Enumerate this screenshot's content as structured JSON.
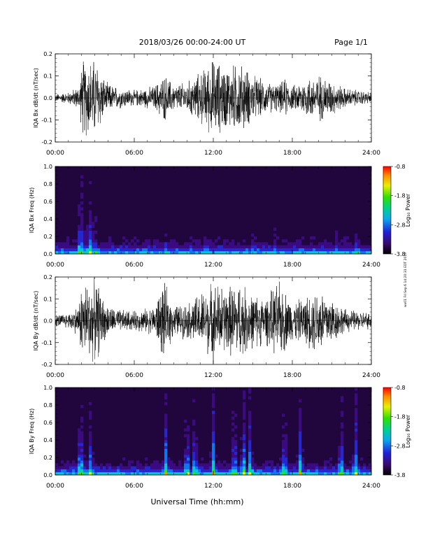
{
  "header": {
    "title": "2018/03/26  00:00-24:00 UT",
    "page": "Page 1/1"
  },
  "footer": {
    "xlabel": "Universal Time (hh:mm)",
    "stamp": "wx01 Fri Sep 6 14:20:31 EDT 2019"
  },
  "chart_data": [
    {
      "type": "line",
      "ylabel": "IQA Bx dB/dt (nT/sec)",
      "xlim": [
        0,
        24
      ],
      "ylim": [
        -0.2,
        0.2
      ],
      "xticks": [
        "00:00",
        "06:00",
        "12:00",
        "18:00",
        "24:00"
      ],
      "yticks": [
        "-0.2",
        "-0.1",
        "0.0",
        "0.1",
        "0.2"
      ],
      "series": [
        {
          "color": "#000000",
          "envelope_x": [
            0,
            1,
            1.8,
            2.1,
            3.2,
            3.8,
            4.5,
            6,
            7.5,
            8.3,
            9,
            10,
            11,
            12,
            13,
            14,
            15,
            16,
            17,
            17.5,
            18,
            19,
            20,
            21,
            22,
            23,
            24
          ],
          "envelope_amplitude": [
            0.02,
            0.03,
            0.06,
            0.2,
            0.2,
            0.08,
            0.06,
            0.04,
            0.06,
            0.12,
            0.07,
            0.08,
            0.13,
            0.2,
            0.16,
            0.18,
            0.12,
            0.08,
            0.07,
            0.1,
            0.06,
            0.1,
            0.12,
            0.09,
            0.05,
            0.04,
            0.03
          ]
        }
      ]
    },
    {
      "type": "heatmap",
      "ylabel": "IQA Bx Freq (Hz)",
      "xlim": [
        0,
        24
      ],
      "ylim": [
        0.0,
        1.0
      ],
      "xticks": [
        "00:00",
        "06:00",
        "12:00",
        "18:00",
        "24:00"
      ],
      "yticks": [
        "0.0",
        "0.2",
        "0.4",
        "0.6",
        "0.8",
        "1.0"
      ],
      "colorbar": {
        "label": "Log₁₀ Power",
        "range": [
          -3.8,
          -0.8
        ],
        "ticks": [
          "-0.8",
          "-1.8",
          "-2.8",
          "-3.8"
        ]
      },
      "bursts": [
        [
          1.9,
          0.9
        ],
        [
          2.05,
          0.75
        ],
        [
          2.6,
          0.85
        ],
        [
          3.0,
          0.5
        ],
        [
          8.4,
          0.25
        ],
        [
          11.5,
          0.15
        ],
        [
          15.0,
          0.15
        ],
        [
          16.7,
          0.2
        ],
        [
          21.3,
          0.25
        ],
        [
          22.9,
          0.35
        ]
      ]
    },
    {
      "type": "line",
      "ylabel": "IQA By dB/dt (nT/sec)",
      "xlim": [
        0,
        24
      ],
      "ylim": [
        -0.2,
        0.2
      ],
      "xticks": [
        "00:00",
        "06:00",
        "12:00",
        "18:00",
        "24:00"
      ],
      "yticks": [
        "-0.2",
        "-0.1",
        "0.0",
        "0.1",
        "0.2"
      ],
      "series": [
        {
          "color": "#000000",
          "envelope_x": [
            0,
            1,
            1.8,
            2.0,
            3.2,
            3.8,
            4.5,
            6,
            7.5,
            8.2,
            9,
            10,
            11,
            12,
            13,
            14,
            15,
            16,
            17,
            18,
            19,
            20,
            21,
            22,
            23,
            24
          ],
          "envelope_amplitude": [
            0.03,
            0.04,
            0.08,
            0.2,
            0.2,
            0.09,
            0.06,
            0.05,
            0.07,
            0.2,
            0.08,
            0.09,
            0.14,
            0.2,
            0.17,
            0.2,
            0.14,
            0.12,
            0.2,
            0.1,
            0.12,
            0.18,
            0.12,
            0.06,
            0.05,
            0.04
          ]
        }
      ]
    },
    {
      "type": "heatmap",
      "ylabel": "IQA By Freq (Hz)",
      "xlim": [
        0,
        24
      ],
      "ylim": [
        0.0,
        1.0
      ],
      "xticks": [
        "00:00",
        "06:00",
        "12:00",
        "18:00",
        "24:00"
      ],
      "yticks": [
        "0.0",
        "0.2",
        "0.4",
        "0.6",
        "0.8",
        "1.0"
      ],
      "colorbar": {
        "label": "Log₁₀ Power",
        "range": [
          -3.8,
          -0.8
        ],
        "ticks": [
          "-0.8",
          "-1.8",
          "-2.8",
          "-3.8"
        ]
      },
      "bursts": [
        [
          1.9,
          1.0
        ],
        [
          2.05,
          0.8
        ],
        [
          2.7,
          0.9
        ],
        [
          8.4,
          1.0
        ],
        [
          10.0,
          1.0
        ],
        [
          10.6,
          1.0
        ],
        [
          12.0,
          1.0
        ],
        [
          13.6,
          1.0
        ],
        [
          14.3,
          1.0
        ],
        [
          14.8,
          1.0
        ],
        [
          17.4,
          1.0
        ],
        [
          18.6,
          1.0
        ],
        [
          21.7,
          1.0
        ],
        [
          22.8,
          1.0
        ]
      ]
    }
  ]
}
